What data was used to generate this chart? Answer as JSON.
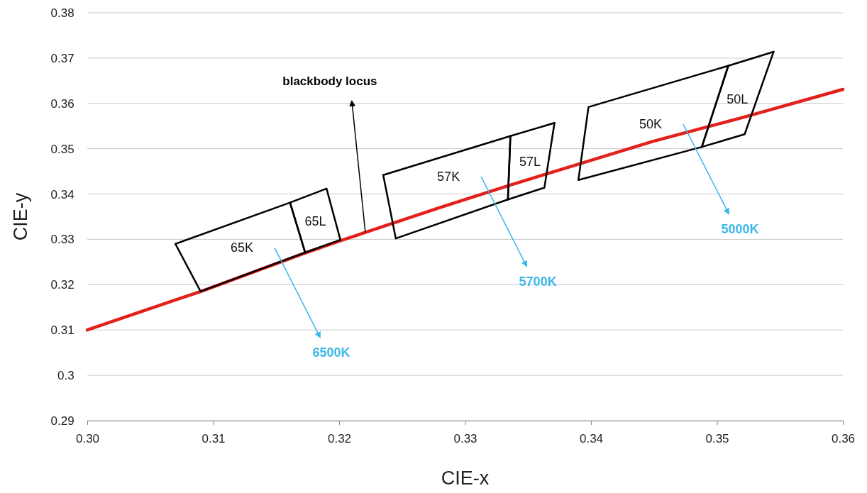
{
  "chart_data": {
    "type": "line",
    "xlabel": "CIE-x",
    "ylabel": "CIE-y",
    "xlim": [
      0.3,
      0.36
    ],
    "ylim": [
      0.29,
      0.38
    ],
    "xticks": [
      {
        "value": 0.3,
        "label": "0.30"
      },
      {
        "value": 0.31,
        "label": "0.31"
      },
      {
        "value": 0.32,
        "label": "0.32"
      },
      {
        "value": 0.33,
        "label": "0.33"
      },
      {
        "value": 0.34,
        "label": "0.34"
      },
      {
        "value": 0.35,
        "label": "0.35"
      },
      {
        "value": 0.36,
        "label": "0.36"
      }
    ],
    "yticks": [
      0.29,
      0.3,
      0.31,
      0.32,
      0.33,
      0.34,
      0.35,
      0.36,
      0.37,
      0.38
    ],
    "grid": "y",
    "marker": "none",
    "line_style": "solid",
    "series": [
      {
        "color": "#e3201b",
        "x": [
          0.3,
          0.3091,
          0.3173,
          0.3201,
          0.328,
          0.3335,
          0.3363,
          0.3449,
          0.3488,
          0.3522,
          0.36
        ],
        "values": [
          0.31,
          0.3186,
          0.327,
          0.3297,
          0.337,
          0.3419,
          0.3443,
          0.3516,
          0.3545,
          0.357,
          0.3631
        ]
      },
      {
        "name": "65K",
        "color": "#000000",
        "x": [
          0.307,
          0.3161,
          0.3173
        ],
        "values": [
          0.329,
          0.3381,
          0.3271
        ]
      },
      {
        "color": "#000000",
        "x": [
          0.307,
          0.309,
          0.3173
        ],
        "values": [
          0.329,
          0.3185,
          0.3271
        ]
      },
      {
        "name": "65L",
        "color": "#000000",
        "x": [
          0.3161,
          0.319,
          0.3201
        ],
        "values": [
          0.3381,
          0.3412,
          0.3299
        ]
      },
      {
        "color": "#000000",
        "x": [
          0.3161,
          0.3173,
          0.3201
        ],
        "values": [
          0.3381,
          0.3271,
          0.3299
        ]
      },
      {
        "name": "57K",
        "color": "#000000",
        "x": [
          0.3235,
          0.3336
        ],
        "values": [
          0.3442,
          0.3528
        ]
      },
      {
        "color": "#000000",
        "x": [
          0.3235,
          0.3245,
          0.3334,
          0.3336
        ],
        "values": [
          0.3442,
          0.3302,
          0.3388,
          0.3528
        ]
      },
      {
        "name": "57L",
        "color": "#000000",
        "x": [
          0.3334,
          0.3336,
          0.3371
        ],
        "values": [
          0.3388,
          0.3528,
          0.3557
        ]
      },
      {
        "color": "#000000",
        "x": [
          0.3334,
          0.3363,
          0.3371
        ],
        "values": [
          0.3388,
          0.3414,
          0.3557
        ]
      },
      {
        "name": "50K",
        "color": "#000000",
        "x": [
          0.339,
          0.3398,
          0.3509
        ],
        "values": [
          0.3431,
          0.3592,
          0.3683
        ]
      },
      {
        "color": "#000000",
        "x": [
          0.339,
          0.3488,
          0.3509
        ],
        "values": [
          0.3431,
          0.3504,
          0.3683
        ]
      },
      {
        "name": "50L",
        "color": "#000000",
        "x": [
          0.3488,
          0.3509,
          0.3545
        ],
        "values": [
          0.3504,
          0.3683,
          0.3714
        ]
      },
      {
        "color": "#000000",
        "x": [
          0.3488,
          0.3522,
          0.3545
        ],
        "values": [
          0.3504,
          0.3532,
          0.3714
        ]
      }
    ],
    "annotations": [
      "blackbody locus",
      "6500K",
      "5700K",
      "5000K"
    ]
  }
}
